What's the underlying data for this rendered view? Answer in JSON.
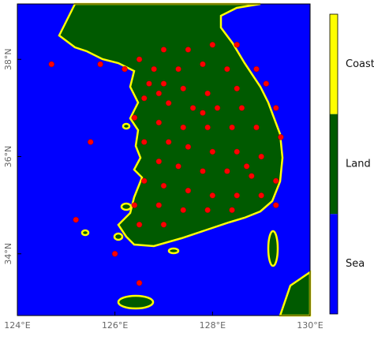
{
  "map": {
    "xlim": [
      124,
      130
    ],
    "ylim": [
      32.73,
      39.14
    ],
    "xticks": [
      {
        "value": 124,
        "label": "124°E"
      },
      {
        "value": 126,
        "label": "126°E"
      },
      {
        "value": 128,
        "label": "128°E"
      },
      {
        "value": 130,
        "label": "130°E"
      }
    ],
    "yticks": [
      {
        "value": 34,
        "label": "34°N"
      },
      {
        "value": 36,
        "label": "36°N"
      },
      {
        "value": 38,
        "label": "38°N"
      }
    ],
    "sea_color": "#0000ff",
    "land_color": "#005a00",
    "coast_color": "#ffff00",
    "station_color": "#ff0000",
    "colorbar": {
      "labels": [
        "Coast",
        "Land",
        "Sea"
      ],
      "colors": [
        "#ffff00",
        "#005a00",
        "#0000ff"
      ]
    },
    "stations": [
      [
        126.5,
        38.0
      ],
      [
        127.0,
        38.2
      ],
      [
        127.5,
        38.2
      ],
      [
        128.0,
        38.3
      ],
      [
        128.5,
        38.3
      ],
      [
        126.8,
        37.8
      ],
      [
        127.3,
        37.8
      ],
      [
        127.8,
        37.9
      ],
      [
        128.3,
        37.8
      ],
      [
        128.9,
        37.8
      ],
      [
        126.7,
        37.5
      ],
      [
        127.0,
        37.5
      ],
      [
        127.4,
        37.4
      ],
      [
        127.9,
        37.3
      ],
      [
        128.5,
        37.4
      ],
      [
        129.1,
        37.5
      ],
      [
        126.6,
        37.2
      ],
      [
        127.1,
        37.1
      ],
      [
        127.6,
        37.0
      ],
      [
        128.1,
        37.0
      ],
      [
        128.6,
        37.0
      ],
      [
        129.3,
        37.0
      ],
      [
        126.4,
        36.8
      ],
      [
        126.9,
        36.7
      ],
      [
        127.4,
        36.6
      ],
      [
        127.9,
        36.6
      ],
      [
        128.4,
        36.6
      ],
      [
        128.9,
        36.6
      ],
      [
        129.4,
        36.4
      ],
      [
        126.6,
        36.3
      ],
      [
        127.1,
        36.3
      ],
      [
        127.5,
        36.2
      ],
      [
        128.0,
        36.1
      ],
      [
        128.5,
        36.1
      ],
      [
        129.0,
        36.0
      ],
      [
        126.9,
        35.9
      ],
      [
        127.3,
        35.8
      ],
      [
        127.8,
        35.7
      ],
      [
        128.3,
        35.7
      ],
      [
        128.8,
        35.6
      ],
      [
        129.3,
        35.5
      ],
      [
        126.6,
        35.5
      ],
      [
        127.0,
        35.4
      ],
      [
        127.5,
        35.3
      ],
      [
        128.0,
        35.2
      ],
      [
        128.5,
        35.2
      ],
      [
        129.0,
        35.2
      ],
      [
        126.4,
        35.0
      ],
      [
        126.9,
        35.0
      ],
      [
        127.4,
        34.9
      ],
      [
        127.9,
        34.9
      ],
      [
        128.4,
        34.9
      ],
      [
        126.5,
        34.6
      ],
      [
        127.0,
        34.6
      ],
      [
        126.5,
        33.4
      ],
      [
        126.2,
        37.8
      ],
      [
        125.7,
        37.9
      ],
      [
        124.7,
        37.9
      ],
      [
        125.5,
        36.3
      ],
      [
        125.2,
        34.7
      ],
      [
        126.0,
        34.0
      ],
      [
        129.3,
        35.0
      ],
      [
        128.7,
        35.8
      ],
      [
        127.8,
        36.9
      ],
      [
        126.9,
        37.3
      ]
    ]
  }
}
